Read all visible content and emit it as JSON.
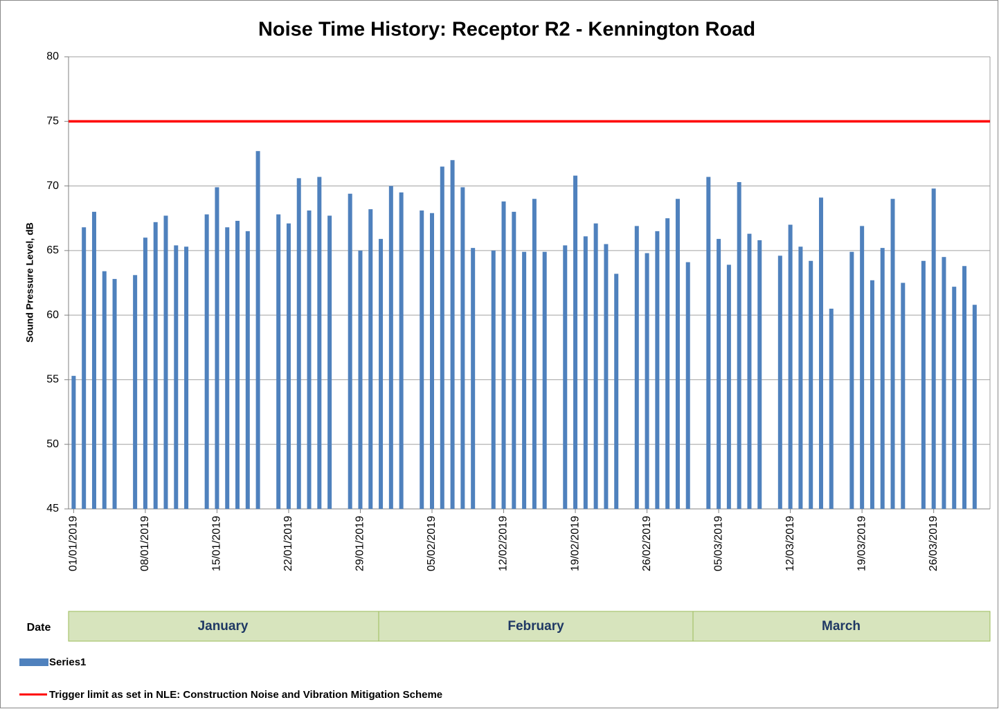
{
  "chart_data": {
    "type": "bar",
    "title": "Noise Time History: Receptor R2 - Kennington Road",
    "y_label": "Sound Pressure Level, dB",
    "x_label": "Date",
    "categories": [
      "01/01/2019",
      null,
      null,
      null,
      null,
      null,
      null,
      "08/01/2019",
      null,
      null,
      null,
      null,
      null,
      null,
      "15/01/2019",
      null,
      null,
      null,
      null,
      null,
      null,
      "22/01/2019",
      null,
      null,
      null,
      null,
      null,
      null,
      "29/01/2019",
      null,
      null,
      null,
      null,
      null,
      null,
      "05/02/2019",
      null,
      null,
      null,
      null,
      null,
      null,
      "12/02/2019",
      null,
      null,
      null,
      null,
      null,
      null,
      "19/02/2019",
      null,
      null,
      null,
      null,
      null,
      null,
      "26/02/2019",
      null,
      null,
      null,
      null,
      null,
      null,
      "05/03/2019",
      null,
      null,
      null,
      null,
      null,
      null,
      "12/03/2019",
      null,
      null,
      null,
      null,
      null,
      null,
      "19/03/2019",
      null,
      null,
      null,
      null,
      null,
      null,
      "26/03/2019",
      null,
      null,
      null,
      null,
      null
    ],
    "series": [
      {
        "name": "Series1",
        "color": "#4f81bd",
        "values": [
          55.3,
          66.8,
          68.0,
          63.4,
          62.8,
          null,
          63.1,
          66.0,
          67.2,
          67.7,
          65.4,
          65.3,
          null,
          67.8,
          69.9,
          66.8,
          67.3,
          66.5,
          72.7,
          null,
          67.8,
          67.1,
          70.6,
          68.1,
          70.7,
          67.7,
          null,
          69.4,
          65.0,
          68.2,
          65.9,
          70.0,
          69.5,
          null,
          68.1,
          67.9,
          71.5,
          72.0,
          69.9,
          65.2,
          null,
          65.0,
          68.8,
          68.0,
          64.9,
          69.0,
          64.9,
          null,
          65.4,
          70.8,
          66.1,
          67.1,
          65.5,
          63.2,
          null,
          66.9,
          64.8,
          66.5,
          67.5,
          69.0,
          64.1,
          null,
          70.7,
          65.9,
          63.9,
          70.3,
          66.3,
          65.8,
          null,
          64.6,
          67.0,
          65.3,
          64.2,
          69.1,
          60.5,
          null,
          64.9,
          66.9,
          62.7,
          65.2,
          69.0,
          62.5,
          null,
          64.2,
          69.8,
          64.5,
          62.2,
          63.8,
          60.8,
          null
        ]
      }
    ],
    "reference_line": {
      "name": "Trigger limit as set in NLE: Construction Noise and Vibration Mitigation Scheme",
      "value": 75,
      "color": "#ff0000"
    },
    "months": [
      "January",
      "February",
      "March"
    ],
    "ylim": [
      45,
      80
    ],
    "yticks": [
      45,
      50,
      55,
      60,
      65,
      70,
      75,
      80
    ],
    "grid": true
  }
}
